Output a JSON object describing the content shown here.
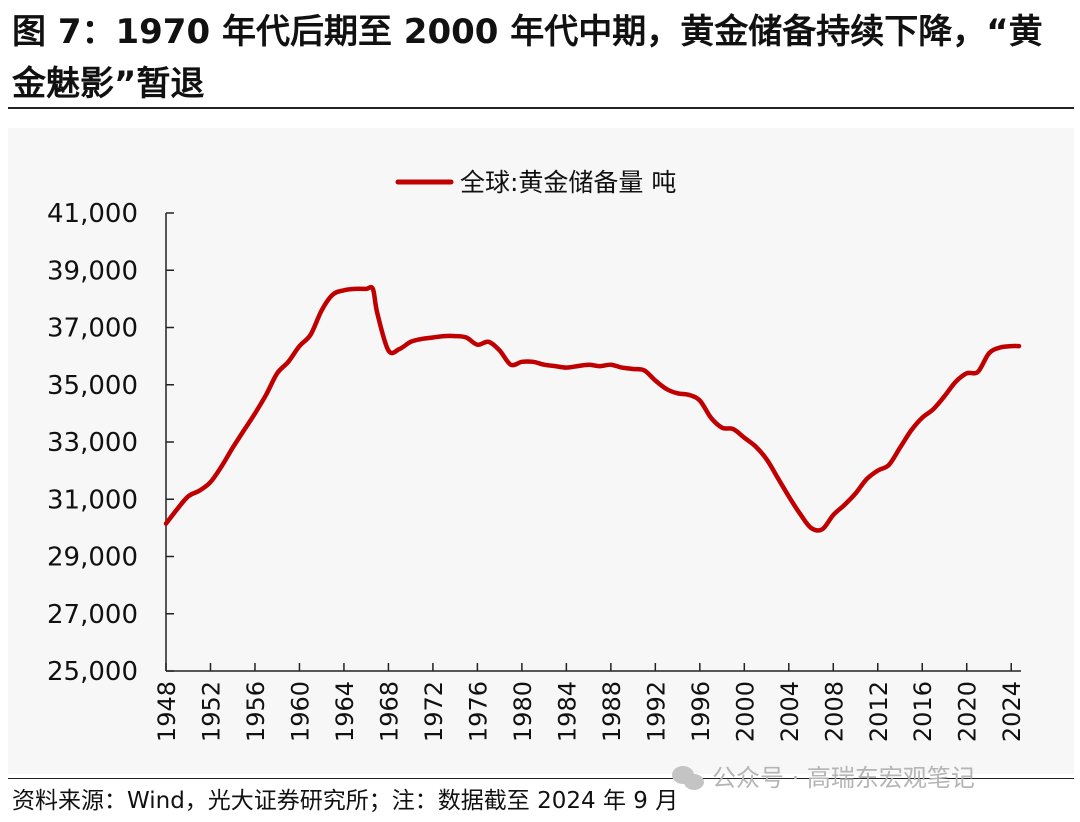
{
  "header": {
    "title": "图 7：1970 年代后期至 2000 年代中期，黄金储备持续下降，“黄金魅影”暂退"
  },
  "footer": {
    "source": "资料来源：Wind，光大证券研究所；注：数据截至 2024 年 9 月"
  },
  "watermark": {
    "text": "公众号 · 高瑞东宏观笔记",
    "icon": "wechat-icon"
  },
  "colors": {
    "series": "#c00000",
    "axis": "#222222",
    "chart_background": "#f7f7f7"
  },
  "chart_data": {
    "type": "line",
    "title": "",
    "xlabel": "",
    "ylabel": "",
    "grid": false,
    "legend_position": "top-center",
    "xlim": [
      1948,
      2024.7
    ],
    "ylim": [
      25000,
      41000
    ],
    "x_ticks": [
      1948,
      1952,
      1956,
      1960,
      1964,
      1968,
      1972,
      1976,
      1980,
      1984,
      1988,
      1992,
      1996,
      2000,
      2004,
      2008,
      2012,
      2016,
      2020,
      2024
    ],
    "y_ticks": [
      25000,
      27000,
      29000,
      31000,
      33000,
      35000,
      37000,
      39000,
      41000
    ],
    "y_tick_labels": [
      "25,000",
      "27,000",
      "29,000",
      "31,000",
      "33,000",
      "35,000",
      "37,000",
      "39,000",
      "41,000"
    ],
    "series": [
      {
        "name": "全球:黄金储备量 吨",
        "color": "#c00000",
        "x": [
          1948,
          1949,
          1950,
          1951,
          1952,
          1953,
          1954,
          1955,
          1956,
          1957,
          1958,
          1959,
          1960,
          1961,
          1962,
          1963,
          1964,
          1965,
          1966,
          1966.6,
          1967,
          1968,
          1969,
          1970,
          1971,
          1972,
          1973,
          1974,
          1975,
          1976,
          1977,
          1978,
          1979,
          1980,
          1981,
          1982,
          1983,
          1984,
          1985,
          1986,
          1987,
          1988,
          1989,
          1990,
          1991,
          1992,
          1993,
          1994,
          1995,
          1996,
          1997,
          1998,
          1999,
          2000,
          2001,
          2002,
          2003,
          2004,
          2005,
          2006,
          2007,
          2008,
          2009,
          2010,
          2011,
          2012,
          2013,
          2014,
          2015,
          2016,
          2017,
          2018,
          2019,
          2020,
          2021,
          2022,
          2023,
          2024,
          2024.7
        ],
        "values": [
          30150,
          30650,
          31100,
          31300,
          31600,
          32150,
          32800,
          33400,
          34000,
          34650,
          35400,
          35800,
          36350,
          36750,
          37600,
          38150,
          38300,
          38350,
          38350,
          38350,
          37500,
          36200,
          36250,
          36500,
          36600,
          36650,
          36700,
          36700,
          36650,
          36400,
          36500,
          36200,
          35700,
          35800,
          35800,
          35700,
          35650,
          35600,
          35650,
          35700,
          35650,
          35700,
          35600,
          35550,
          35500,
          35150,
          34850,
          34700,
          34650,
          34450,
          33850,
          33500,
          33450,
          33150,
          32850,
          32400,
          31750,
          31100,
          30500,
          30000,
          29950,
          30450,
          30800,
          31200,
          31700,
          32000,
          32200,
          32800,
          33400,
          33850,
          34150,
          34600,
          35100,
          35400,
          35450,
          36100,
          36300,
          36350,
          36350
        ]
      }
    ]
  }
}
